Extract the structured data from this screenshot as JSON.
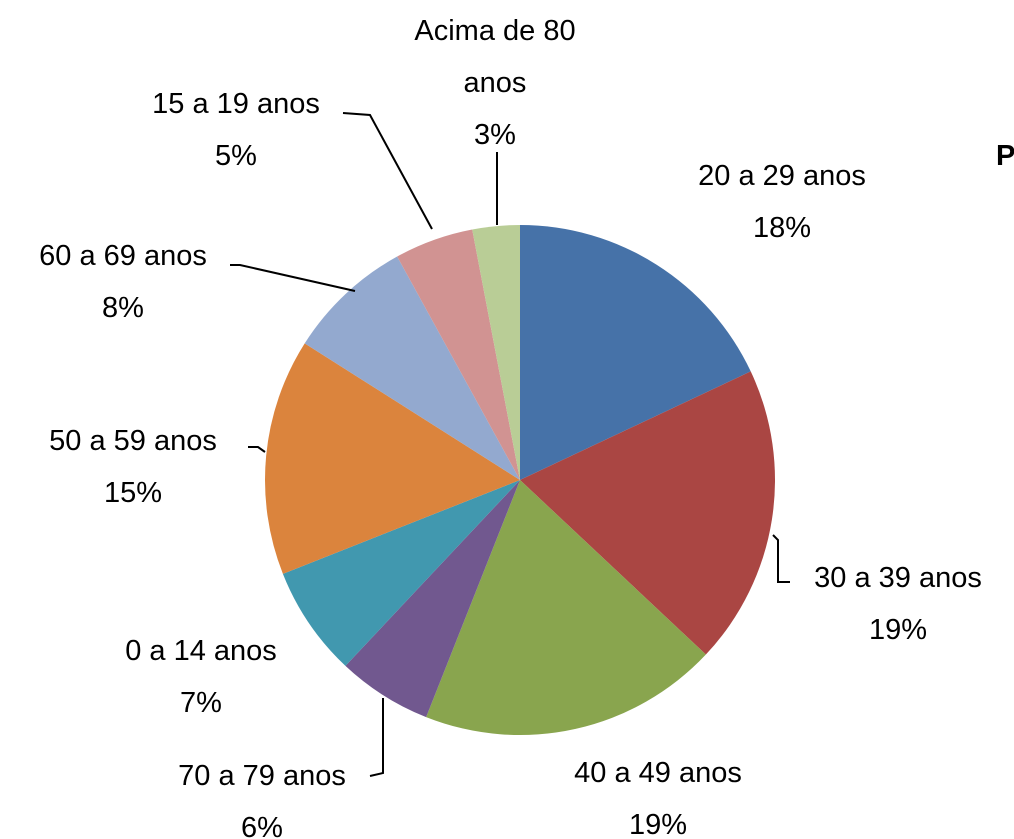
{
  "chart_data": {
    "type": "pie",
    "title": "P",
    "categories": [
      "20 a 29 anos",
      "30 a 39 anos",
      "40 a 49 anos",
      "70 a 79 anos",
      "0 a 14 anos",
      "50 a 59 anos",
      "60 a 69 anos",
      "15 a 19 anos",
      "Acima de 80 anos"
    ],
    "values": [
      18,
      19,
      19,
      6,
      7,
      15,
      8,
      5,
      3
    ],
    "value_labels": [
      "18%",
      "19%",
      "19%",
      "6%",
      "7%",
      "15%",
      "8%",
      "5%",
      "3%"
    ],
    "colors": [
      "#4672a8",
      "#aa4643",
      "#89a54e",
      "#71588f",
      "#4198af",
      "#db843d",
      "#93a9cf",
      "#d19392",
      "#b9cd96"
    ]
  }
}
